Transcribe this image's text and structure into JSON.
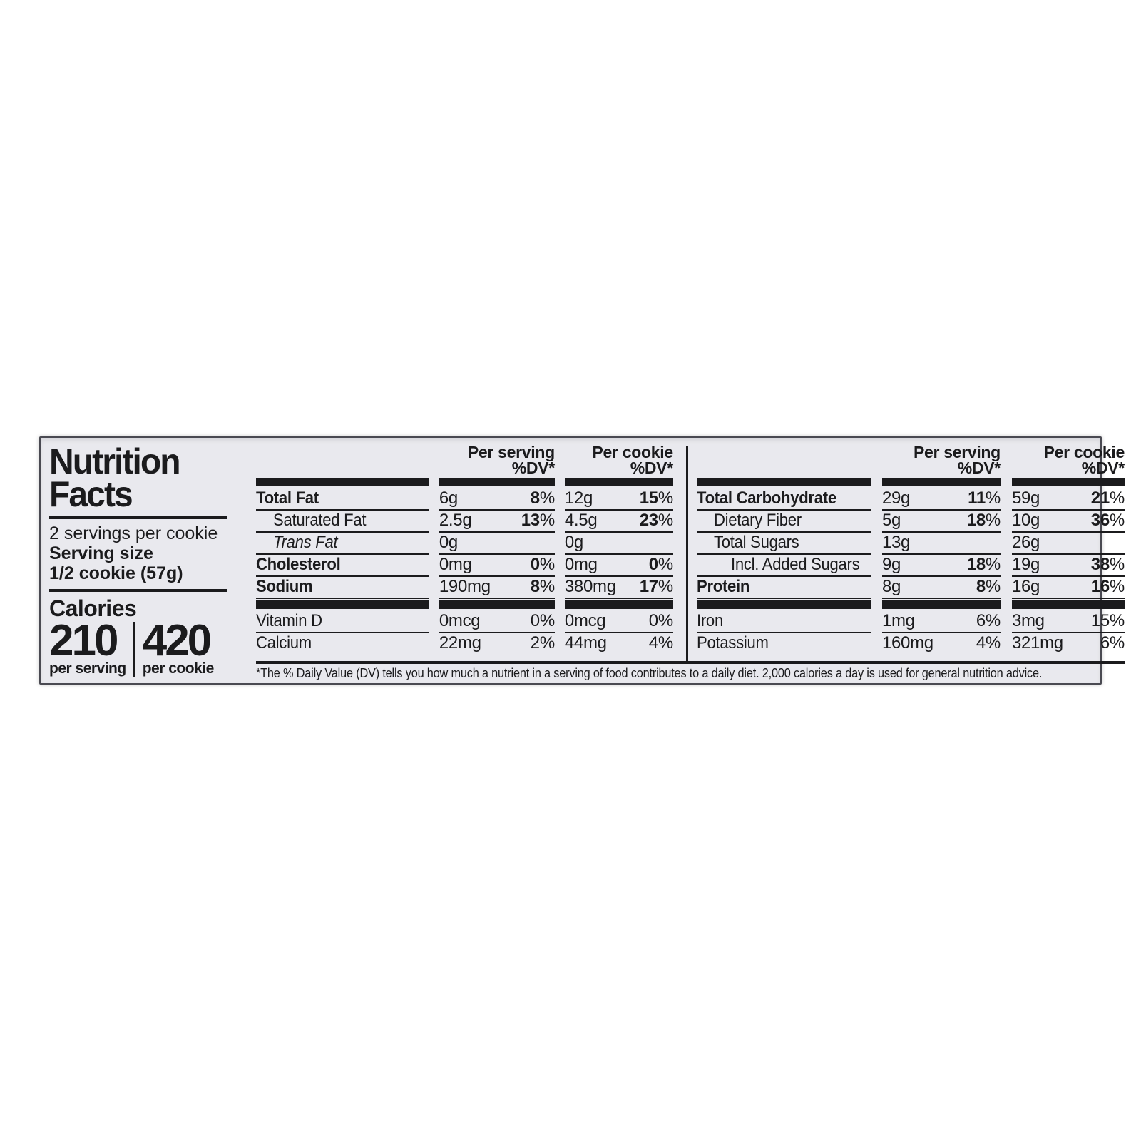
{
  "label": {
    "title_line1": "Nutrition",
    "title_line2": "Facts",
    "servings_per_container": "2 servings per cookie",
    "serving_size_label": "Serving size",
    "serving_size_value": "1/2 cookie (57g)",
    "calories_label": "Calories",
    "calories": {
      "per_serving_value": "210",
      "per_serving_caption": "per serving",
      "per_cookie_value": "420",
      "per_cookie_caption": "per cookie"
    },
    "footnote": "*The % Daily Value (DV) tells you how much a nutrient in a serving of food contributes to a daily diet. 2,000 calories a day is used for general nutrition advice.",
    "colors": {
      "label_background": "#e9e9ee",
      "ink": "#1b1b1d",
      "page_background": "#ffffff"
    }
  },
  "table_headers": {
    "per_serving": "Per serving",
    "per_cookie": "Per cookie",
    "dv": "%DV*"
  },
  "nutrient_tables": {
    "left": [
      {
        "name": "Total Fat",
        "bold": true,
        "indent": 0,
        "bar_above": true,
        "serving": {
          "amount": "6g",
          "dv": "8%",
          "dv_strong": true
        },
        "cookie": {
          "amount": "12g",
          "dv": "15%",
          "dv_strong": true
        }
      },
      {
        "name": "Saturated Fat",
        "indent": 1,
        "serving": {
          "amount": "2.5g",
          "dv": "13%",
          "dv_strong": true
        },
        "cookie": {
          "amount": "4.5g",
          "dv": "23%",
          "dv_strong": true
        }
      },
      {
        "name": "Trans Fat",
        "italic": true,
        "indent": 1,
        "serving": {
          "amount": "0g",
          "dv": ""
        },
        "cookie": {
          "amount": "0g",
          "dv": ""
        }
      },
      {
        "name": "Cholesterol",
        "bold": true,
        "indent": 0,
        "serving": {
          "amount": "0mg",
          "dv": "0%",
          "dv_strong": true
        },
        "cookie": {
          "amount": "0mg",
          "dv": "0%",
          "dv_strong": true
        }
      },
      {
        "name": "Sodium",
        "bold": true,
        "indent": 0,
        "serving": {
          "amount": "190mg",
          "dv": "8%",
          "dv_strong": true
        },
        "cookie": {
          "amount": "380mg",
          "dv": "17%",
          "dv_strong": true
        }
      },
      {
        "name": "Vitamin D",
        "indent": 0,
        "bar_above": true,
        "serving": {
          "amount": "0mcg",
          "dv": "0%"
        },
        "cookie": {
          "amount": "0mcg",
          "dv": "0%"
        }
      },
      {
        "name": "Calcium",
        "indent": 0,
        "serving": {
          "amount": "22mg",
          "dv": "2%"
        },
        "cookie": {
          "amount": "44mg",
          "dv": "4%"
        }
      }
    ],
    "right": [
      {
        "name": "Total Carbohydrate",
        "bold": true,
        "indent": 0,
        "bar_above": true,
        "serving": {
          "amount": "29g",
          "dv": "11%",
          "dv_strong": true
        },
        "cookie": {
          "amount": "59g",
          "dv": "21%",
          "dv_strong": true
        }
      },
      {
        "name": "Dietary Fiber",
        "indent": 1,
        "serving": {
          "amount": "5g",
          "dv": "18%",
          "dv_strong": true
        },
        "cookie": {
          "amount": "10g",
          "dv": "36%",
          "dv_strong": true
        }
      },
      {
        "name": "Total Sugars",
        "indent": 1,
        "serving": {
          "amount": "13g",
          "dv": ""
        },
        "cookie": {
          "amount": "26g",
          "dv": ""
        }
      },
      {
        "name": "Incl. Added Sugars",
        "indent": 2,
        "serving": {
          "amount": "9g",
          "dv": "18%",
          "dv_strong": true
        },
        "cookie": {
          "amount": "19g",
          "dv": "38%",
          "dv_strong": true
        }
      },
      {
        "name": "Protein",
        "bold": true,
        "indent": 0,
        "serving": {
          "amount": "8g",
          "dv": "8%",
          "dv_strong": true
        },
        "cookie": {
          "amount": "16g",
          "dv": "16%",
          "dv_strong": true
        }
      },
      {
        "name": "Iron",
        "indent": 0,
        "bar_above": true,
        "serving": {
          "amount": "1mg",
          "dv": "6%"
        },
        "cookie": {
          "amount": "3mg",
          "dv": "15%"
        }
      },
      {
        "name": "Potassium",
        "indent": 0,
        "serving": {
          "amount": "160mg",
          "dv": "4%"
        },
        "cookie": {
          "amount": "321mg",
          "dv": "6%"
        }
      }
    ]
  }
}
